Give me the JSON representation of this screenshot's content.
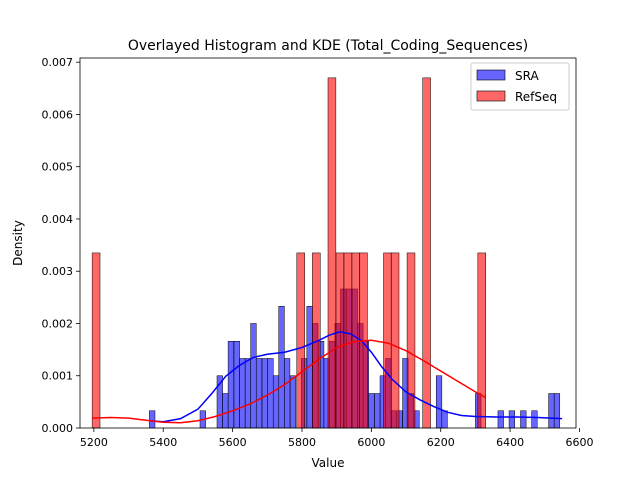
{
  "chart_data": {
    "type": "histogram",
    "title": "Overlayed Histogram and KDE (Total_Coding_Sequences)",
    "xlabel": "Value",
    "ylabel": "Density",
    "xlim": [
      5160,
      6590
    ],
    "ylim": [
      0,
      0.00708
    ],
    "x_ticks": [
      5200,
      5400,
      5600,
      5800,
      6000,
      6200,
      6400,
      6600
    ],
    "x_tick_labels": [
      "5200",
      "5400",
      "5600",
      "5800",
      "6000",
      "6200",
      "6400",
      "6600"
    ],
    "y_ticks": [
      0,
      0.001,
      0.002,
      0.003,
      0.004,
      0.005,
      0.006,
      0.007
    ],
    "y_tick_labels": [
      "0.000",
      "0.001",
      "0.002",
      "0.003",
      "0.004",
      "0.005",
      "0.006",
      "0.007"
    ],
    "grid": false,
    "legend": {
      "position": "top-right",
      "entries": [
        "SRA",
        "RefSeq"
      ]
    },
    "series": [
      {
        "name": "SRA",
        "color": "#0000ff",
        "bin_width": 16.2,
        "bin_starts": [
          5360,
          5506,
          5555,
          5571,
          5587,
          5604,
          5620,
          5636,
          5652,
          5668,
          5685,
          5701,
          5717,
          5733,
          5749,
          5766,
          5798,
          5814,
          5830,
          5847,
          5863,
          5879,
          5895,
          5911,
          5928,
          5944,
          5960,
          5976,
          5992,
          6009,
          6025,
          6041,
          6057,
          6073,
          6090,
          6106,
          6122,
          6187,
          6203,
          6300,
          6365,
          6397,
          6430,
          6462,
          6511,
          6527
        ],
        "values": [
          0.00033,
          0.00033,
          0.001,
          0.00066,
          0.00166,
          0.00166,
          0.00133,
          0.00133,
          0.002,
          0.00133,
          0.00133,
          0.00133,
          0.001,
          0.00233,
          0.00133,
          0.001,
          0.00133,
          0.00233,
          0.002,
          0.00166,
          0.00133,
          0.00166,
          0.002,
          0.00266,
          0.00266,
          0.00266,
          0.002,
          0.00166,
          0.00066,
          0.00066,
          0.001,
          0.00133,
          0.00033,
          0.00033,
          0.00133,
          0.00066,
          0.00033,
          0.001,
          0.00033,
          0.00066,
          0.00033,
          0.00033,
          0.00033,
          0.00033,
          0.00066,
          0.00066
        ],
        "kde": {
          "x": [
            5360,
            5400,
            5450,
            5500,
            5540,
            5580,
            5620,
            5660,
            5700,
            5750,
            5800,
            5850,
            5880,
            5910,
            5940,
            5970,
            6000,
            6030,
            6060,
            6100,
            6140,
            6180,
            6220,
            6260,
            6300,
            6360,
            6420,
            6480,
            6550
          ],
          "y": [
            0.00014,
            0.00012,
            0.00018,
            0.00036,
            0.00066,
            0.00099,
            0.0012,
            0.00135,
            0.00141,
            0.00145,
            0.00154,
            0.00168,
            0.00178,
            0.00184,
            0.0018,
            0.00168,
            0.00145,
            0.00117,
            0.00093,
            0.00069,
            0.00054,
            0.00041,
            0.0003,
            0.00024,
            0.00022,
            0.00021,
            0.00021,
            0.0002,
            0.00018
          ]
        }
      },
      {
        "name": "RefSeq",
        "color": "#ff0000",
        "bin_width": 22.7,
        "bin_starts": [
          5195,
          5785,
          5830,
          5875,
          5898,
          5921,
          5944,
          5966,
          6035,
          6057,
          6103,
          6148,
          6307
        ],
        "values": [
          0.00335,
          0.00335,
          0.00335,
          0.0067,
          0.00335,
          0.00335,
          0.00335,
          0.00335,
          0.00335,
          0.00335,
          0.00335,
          0.0067,
          0.00335
        ],
        "kde": {
          "x": [
            5195,
            5250,
            5300,
            5350,
            5400,
            5450,
            5500,
            5550,
            5600,
            5650,
            5700,
            5750,
            5800,
            5850,
            5900,
            5950,
            6000,
            6050,
            6100,
            6150,
            6200,
            6250,
            6300,
            6330
          ],
          "y": [
            0.00019,
            0.0002,
            0.00019,
            0.00015,
            0.00011,
            0.0001,
            0.00014,
            0.00022,
            0.00033,
            0.00046,
            0.00063,
            0.00083,
            0.00108,
            0.00132,
            0.00154,
            0.00165,
            0.00168,
            0.00162,
            0.00148,
            0.00129,
            0.00109,
            0.00089,
            0.00069,
            0.00058
          ]
        }
      }
    ]
  }
}
